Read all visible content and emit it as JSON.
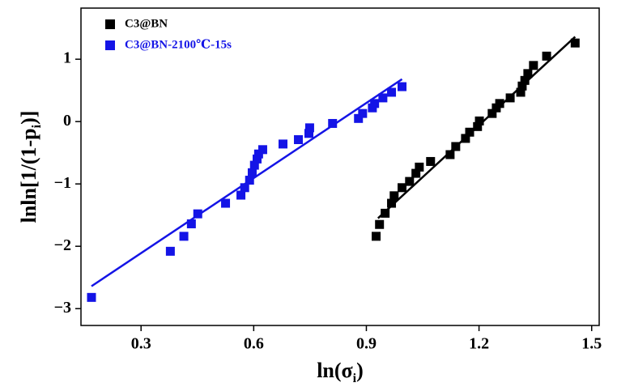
{
  "chart_data": {
    "type": "scatter",
    "x_label": [
      "ln(σ",
      "i",
      ")"
    ],
    "y_label": [
      "lnln[1/(1-p",
      "i",
      ")]"
    ],
    "xlim": [
      0.14,
      1.52
    ],
    "ylim": [
      -3.27,
      1.82
    ],
    "xticks": [
      0.3,
      0.6,
      0.9,
      1.2,
      1.5
    ],
    "yticks": [
      {
        "value": -3,
        "label": "−3"
      },
      {
        "value": -2,
        "label": "−2"
      },
      {
        "value": -1,
        "label": "−1"
      },
      0,
      1
    ],
    "legend": "top-left",
    "series": [
      {
        "name": "C3@BN",
        "color": "#000000",
        "x": [
          0.926,
          0.935,
          0.95,
          0.967,
          0.974,
          0.995,
          1.015,
          1.032,
          1.041,
          1.071,
          1.123,
          1.138,
          1.164,
          1.175,
          1.196,
          1.201,
          1.235,
          1.246,
          1.255,
          1.283,
          1.311,
          1.315,
          1.322,
          1.33,
          1.345,
          1.38,
          1.456
        ],
        "values": [
          -1.84,
          -1.65,
          -1.47,
          -1.31,
          -1.19,
          -1.06,
          -0.96,
          -0.83,
          -0.73,
          -0.64,
          -0.53,
          -0.4,
          -0.27,
          -0.17,
          -0.08,
          0.01,
          0.13,
          0.22,
          0.29,
          0.38,
          0.47,
          0.57,
          0.66,
          0.77,
          0.9,
          1.05,
          1.26
        ],
        "fit_x": [
          0.931,
          1.456
        ],
        "fit_y": [
          -1.55,
          1.36
        ]
      },
      {
        "name": "C3@BN-2100℃-15s",
        "color": "#1414e6",
        "x": [
          0.168,
          0.378,
          0.414,
          0.434,
          0.451,
          0.525,
          0.566,
          0.576,
          0.589,
          0.596,
          0.602,
          0.609,
          0.613,
          0.624,
          0.678,
          0.719,
          0.747,
          0.749,
          0.81,
          0.879,
          0.89,
          0.916,
          0.922,
          0.944,
          0.967,
          0.995
        ],
        "values": [
          -2.82,
          -2.08,
          -1.84,
          -1.64,
          -1.48,
          -1.31,
          -1.18,
          -1.06,
          -0.94,
          -0.82,
          -0.7,
          -0.6,
          -0.52,
          -0.45,
          -0.36,
          -0.29,
          -0.19,
          -0.1,
          -0.03,
          0.05,
          0.13,
          0.22,
          0.29,
          0.38,
          0.47,
          0.56
        ],
        "fit_x": [
          0.168,
          0.995
        ],
        "fit_y": [
          -2.64,
          0.68
        ]
      }
    ]
  }
}
